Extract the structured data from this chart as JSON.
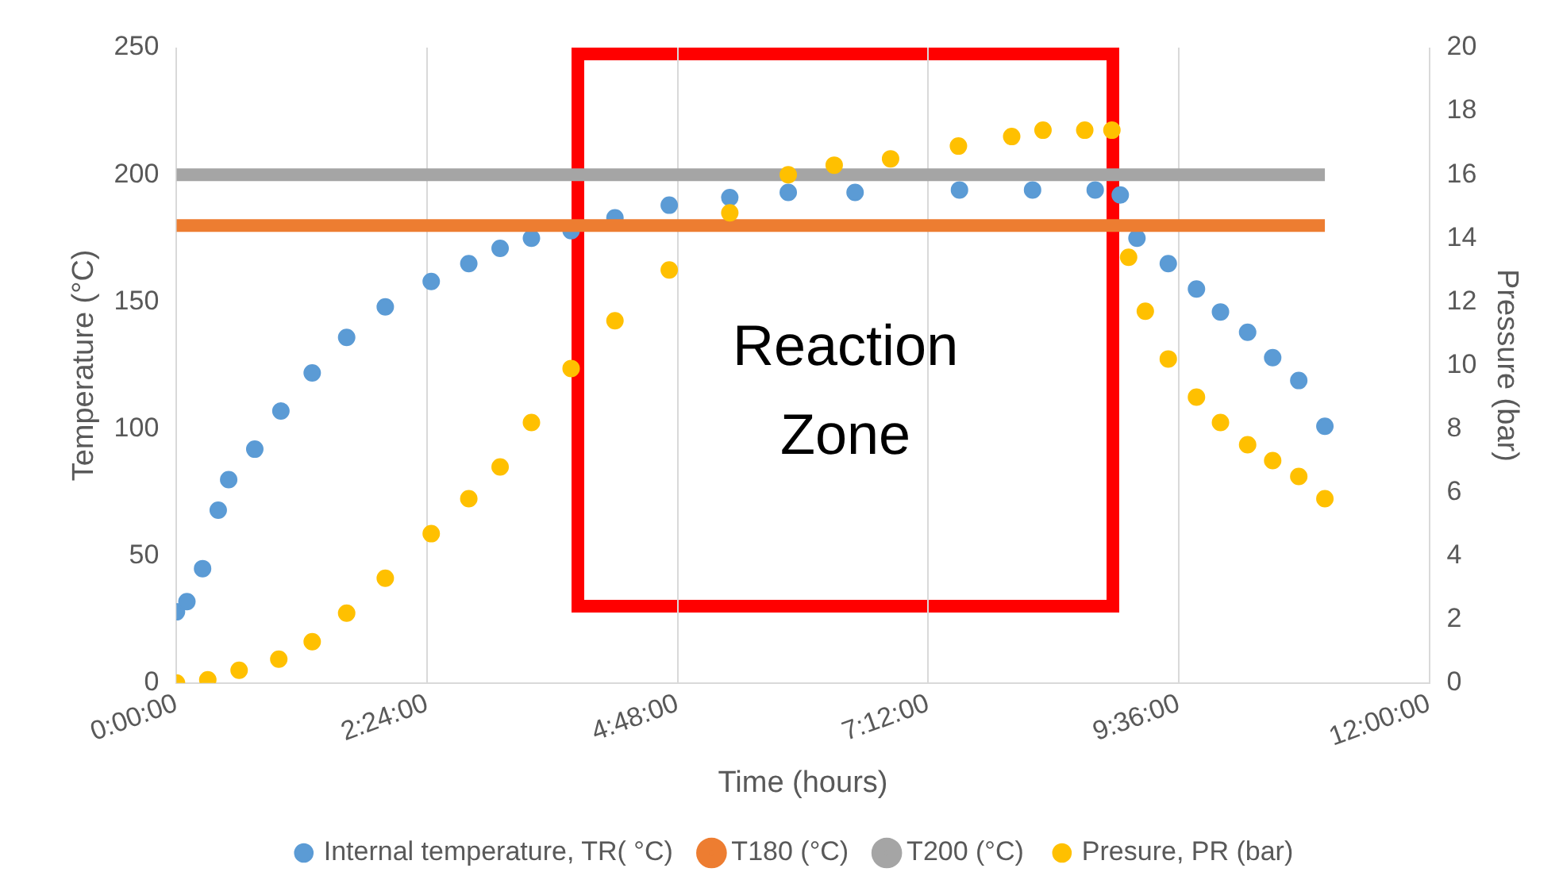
{
  "chart_data": {
    "type": "scatter",
    "xlabel": "Time (hours)",
    "ylabel": "Temperature (°C)",
    "y2label": "Pressure (bar)",
    "xlim": [
      0,
      12
    ],
    "xticks": [
      {
        "value": 0,
        "label": "0:00:00"
      },
      {
        "value": 2.4,
        "label": "2:24:00"
      },
      {
        "value": 4.8,
        "label": "4:48:00"
      },
      {
        "value": 7.2,
        "label": "7:12:00"
      },
      {
        "value": 9.6,
        "label": "9:36:00"
      },
      {
        "value": 12,
        "label": "12:00:00"
      }
    ],
    "ylim": [
      0,
      250
    ],
    "yticks": [
      0,
      50,
      100,
      150,
      200,
      250
    ],
    "y2lim": [
      0,
      20
    ],
    "y2ticks": [
      0,
      2,
      4,
      6,
      8,
      10,
      12,
      14,
      16,
      18,
      20
    ],
    "grid": "x",
    "legend": "bottom",
    "marker": "circle",
    "annotations": [
      "Reaction Zone"
    ],
    "series": [
      {
        "name": "Internal temperature, TR( °C)",
        "color": "#5b9bd5",
        "x": [
          0,
          0.1,
          0.25,
          0.4,
          0.5,
          0.75,
          1,
          1.3,
          1.63,
          2,
          2.44,
          2.8,
          3.1,
          3.4,
          3.78,
          4.2,
          4.72,
          5.3,
          5.86,
          6.5,
          7.5,
          8.2,
          8.8,
          9.04,
          9.2,
          9.5,
          9.77,
          10,
          10.26,
          10.5,
          10.75,
          11
        ],
        "values": [
          28,
          32,
          45,
          68,
          80,
          92,
          107,
          122,
          136,
          148,
          158,
          165,
          171,
          175,
          178,
          183,
          188,
          191,
          193,
          193,
          194,
          194,
          194,
          192,
          175,
          165,
          155,
          146,
          138,
          128,
          119,
          101
        ]
      },
      {
        "name": "T180 (°C)",
        "type": "line",
        "marker": "none",
        "color": "#ed7d31",
        "x": [
          0,
          11
        ],
        "values": [
          180,
          180
        ]
      },
      {
        "name": "T200 (°C)",
        "type": "line",
        "marker": "none",
        "color": "#a5a5a5",
        "x": [
          0,
          11
        ],
        "values": [
          200,
          200
        ]
      },
      {
        "name": "Presure, PR (bar)",
        "axis": "y2",
        "color": "#ffc000",
        "x": [
          0,
          0.3,
          0.6,
          0.98,
          1.3,
          1.63,
          2,
          2.44,
          2.8,
          3.1,
          3.4,
          3.78,
          4.2,
          4.72,
          5.3,
          5.86,
          6.3,
          6.84,
          7.49,
          8,
          8.3,
          8.7,
          8.96,
          9.12,
          9.28,
          9.5,
          9.77,
          10,
          10.26,
          10.5,
          10.75,
          11
        ],
        "values": [
          0,
          0.1,
          0.4,
          0.75,
          1.3,
          2.2,
          3.3,
          4.7,
          5.8,
          6.8,
          8.2,
          9.9,
          11.4,
          13,
          14.8,
          16,
          16.3,
          16.5,
          16.9,
          17.2,
          17.4,
          17.4,
          17.4,
          13.4,
          11.7,
          10.2,
          9,
          8.2,
          7.5,
          7,
          6.5,
          5.8
        ]
      }
    ]
  }
}
